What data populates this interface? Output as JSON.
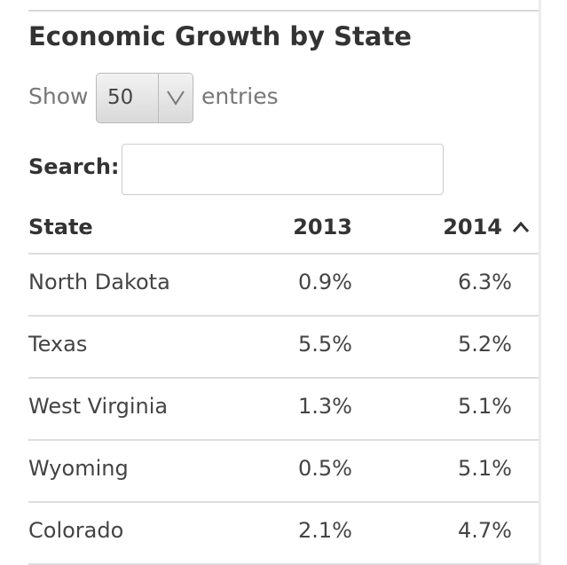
{
  "header": {
    "title": "Economic Growth by State"
  },
  "length_control": {
    "before": "Show",
    "selected": "50",
    "after": "entries"
  },
  "search": {
    "label": "Search:"
  },
  "table": {
    "columns": [
      "State",
      "2013",
      "2014"
    ],
    "rows": [
      [
        "North Dakota",
        "0.9%",
        "6.3%"
      ],
      [
        "Texas",
        "5.5%",
        "5.2%"
      ],
      [
        "West Virginia",
        "1.3%",
        "5.1%"
      ],
      [
        "Wyoming",
        "0.5%",
        "5.1%"
      ],
      [
        "Colorado",
        "2.1%",
        "4.7%"
      ]
    ]
  }
}
